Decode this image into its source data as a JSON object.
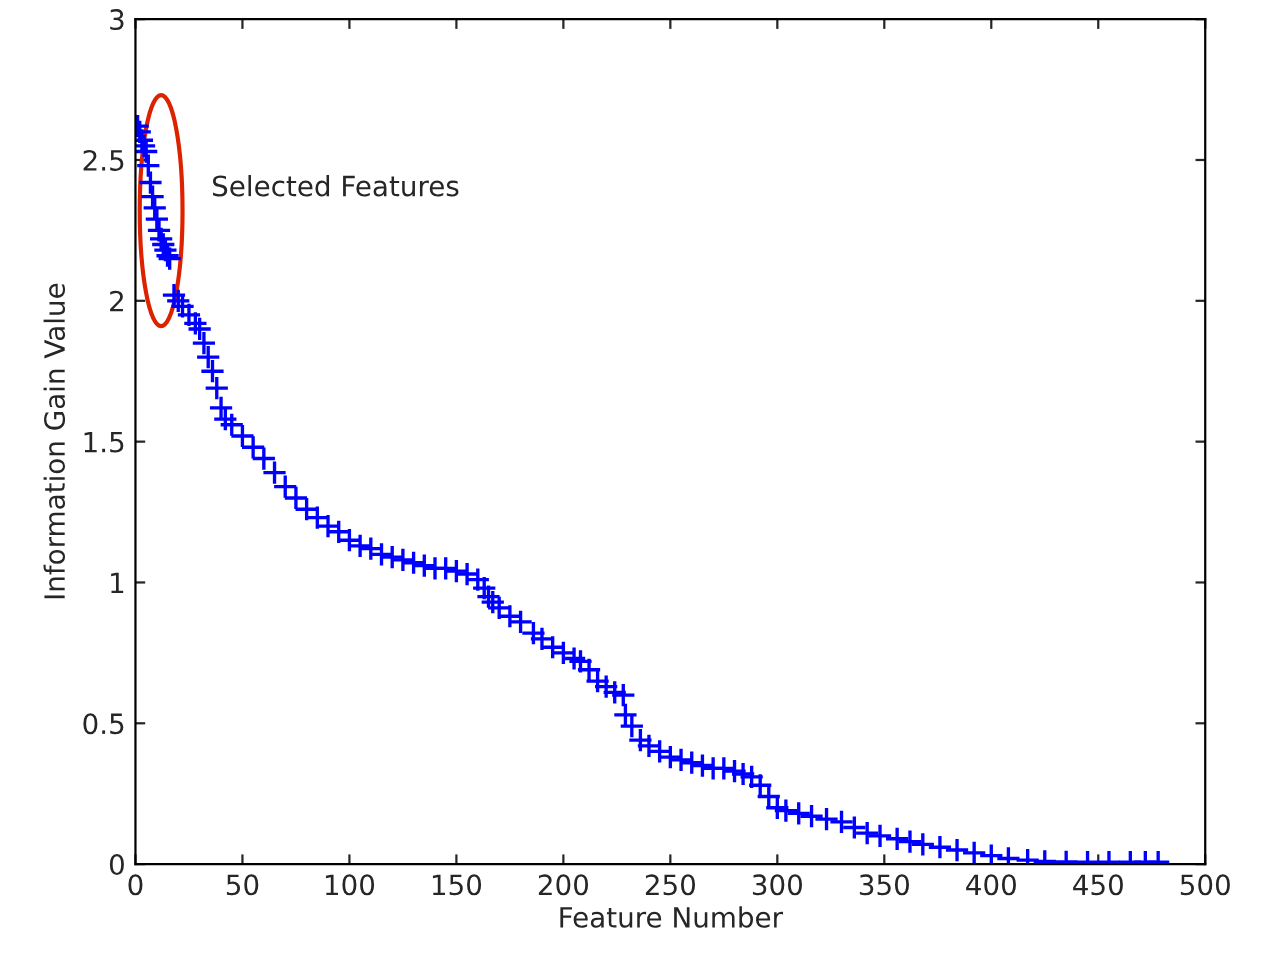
{
  "chart_data": {
    "type": "scatter",
    "xlabel": "Feature Number",
    "ylabel": "Information Gain Value",
    "xlim": [
      0,
      500
    ],
    "ylim": [
      0,
      3
    ],
    "xticks": [
      0,
      50,
      100,
      150,
      200,
      250,
      300,
      350,
      400,
      450,
      500
    ],
    "yticks": [
      0,
      0.5,
      1,
      1.5,
      2,
      2.5,
      3
    ],
    "marker": "cross",
    "grid": false,
    "series": [
      {
        "color": "#0000ff",
        "x": [
          1,
          2,
          3,
          4,
          5,
          6,
          7,
          8,
          9,
          10,
          11,
          12,
          13,
          14,
          15,
          16,
          18,
          20,
          22,
          25,
          28,
          30,
          32,
          34,
          36,
          38,
          40,
          42,
          45,
          50,
          55,
          60,
          65,
          70,
          75,
          80,
          85,
          90,
          95,
          100,
          105,
          110,
          115,
          120,
          125,
          130,
          135,
          140,
          145,
          150,
          155,
          160,
          163,
          165,
          167,
          170,
          175,
          180,
          186,
          190,
          195,
          200,
          205,
          208,
          212,
          216,
          220,
          224,
          228,
          229,
          232,
          236,
          240,
          245,
          250,
          255,
          260,
          265,
          270,
          275,
          280,
          284,
          288,
          292,
          296,
          300,
          304,
          310,
          316,
          323,
          330,
          336,
          342,
          348,
          356,
          362,
          368,
          376,
          384,
          392,
          400,
          408,
          417,
          425,
          435,
          445,
          455,
          465,
          472,
          478
        ],
        "values": [
          2.62,
          2.6,
          2.57,
          2.55,
          2.53,
          2.48,
          2.42,
          2.37,
          2.33,
          2.29,
          2.25,
          2.22,
          2.2,
          2.18,
          2.16,
          2.15,
          2.02,
          2.0,
          1.98,
          1.95,
          1.92,
          1.9,
          1.85,
          1.8,
          1.75,
          1.69,
          1.62,
          1.58,
          1.56,
          1.52,
          1.48,
          1.44,
          1.39,
          1.34,
          1.3,
          1.26,
          1.23,
          1.2,
          1.18,
          1.15,
          1.13,
          1.12,
          1.1,
          1.09,
          1.08,
          1.07,
          1.06,
          1.05,
          1.05,
          1.04,
          1.03,
          1.01,
          0.98,
          0.95,
          0.93,
          0.91,
          0.88,
          0.86,
          0.82,
          0.8,
          0.77,
          0.75,
          0.73,
          0.72,
          0.69,
          0.65,
          0.63,
          0.61,
          0.6,
          0.53,
          0.49,
          0.44,
          0.42,
          0.4,
          0.38,
          0.37,
          0.36,
          0.35,
          0.34,
          0.34,
          0.33,
          0.32,
          0.31,
          0.28,
          0.24,
          0.2,
          0.19,
          0.18,
          0.17,
          0.16,
          0.15,
          0.13,
          0.11,
          0.1,
          0.09,
          0.08,
          0.07,
          0.06,
          0.05,
          0.04,
          0.03,
          0.02,
          0.014,
          0.01,
          0.008,
          0.007,
          0.007,
          0.007,
          0.007,
          0.007
        ]
      }
    ],
    "annotations": [
      {
        "text": "Selected Features",
        "x": 12,
        "y": 2.32
      }
    ]
  }
}
